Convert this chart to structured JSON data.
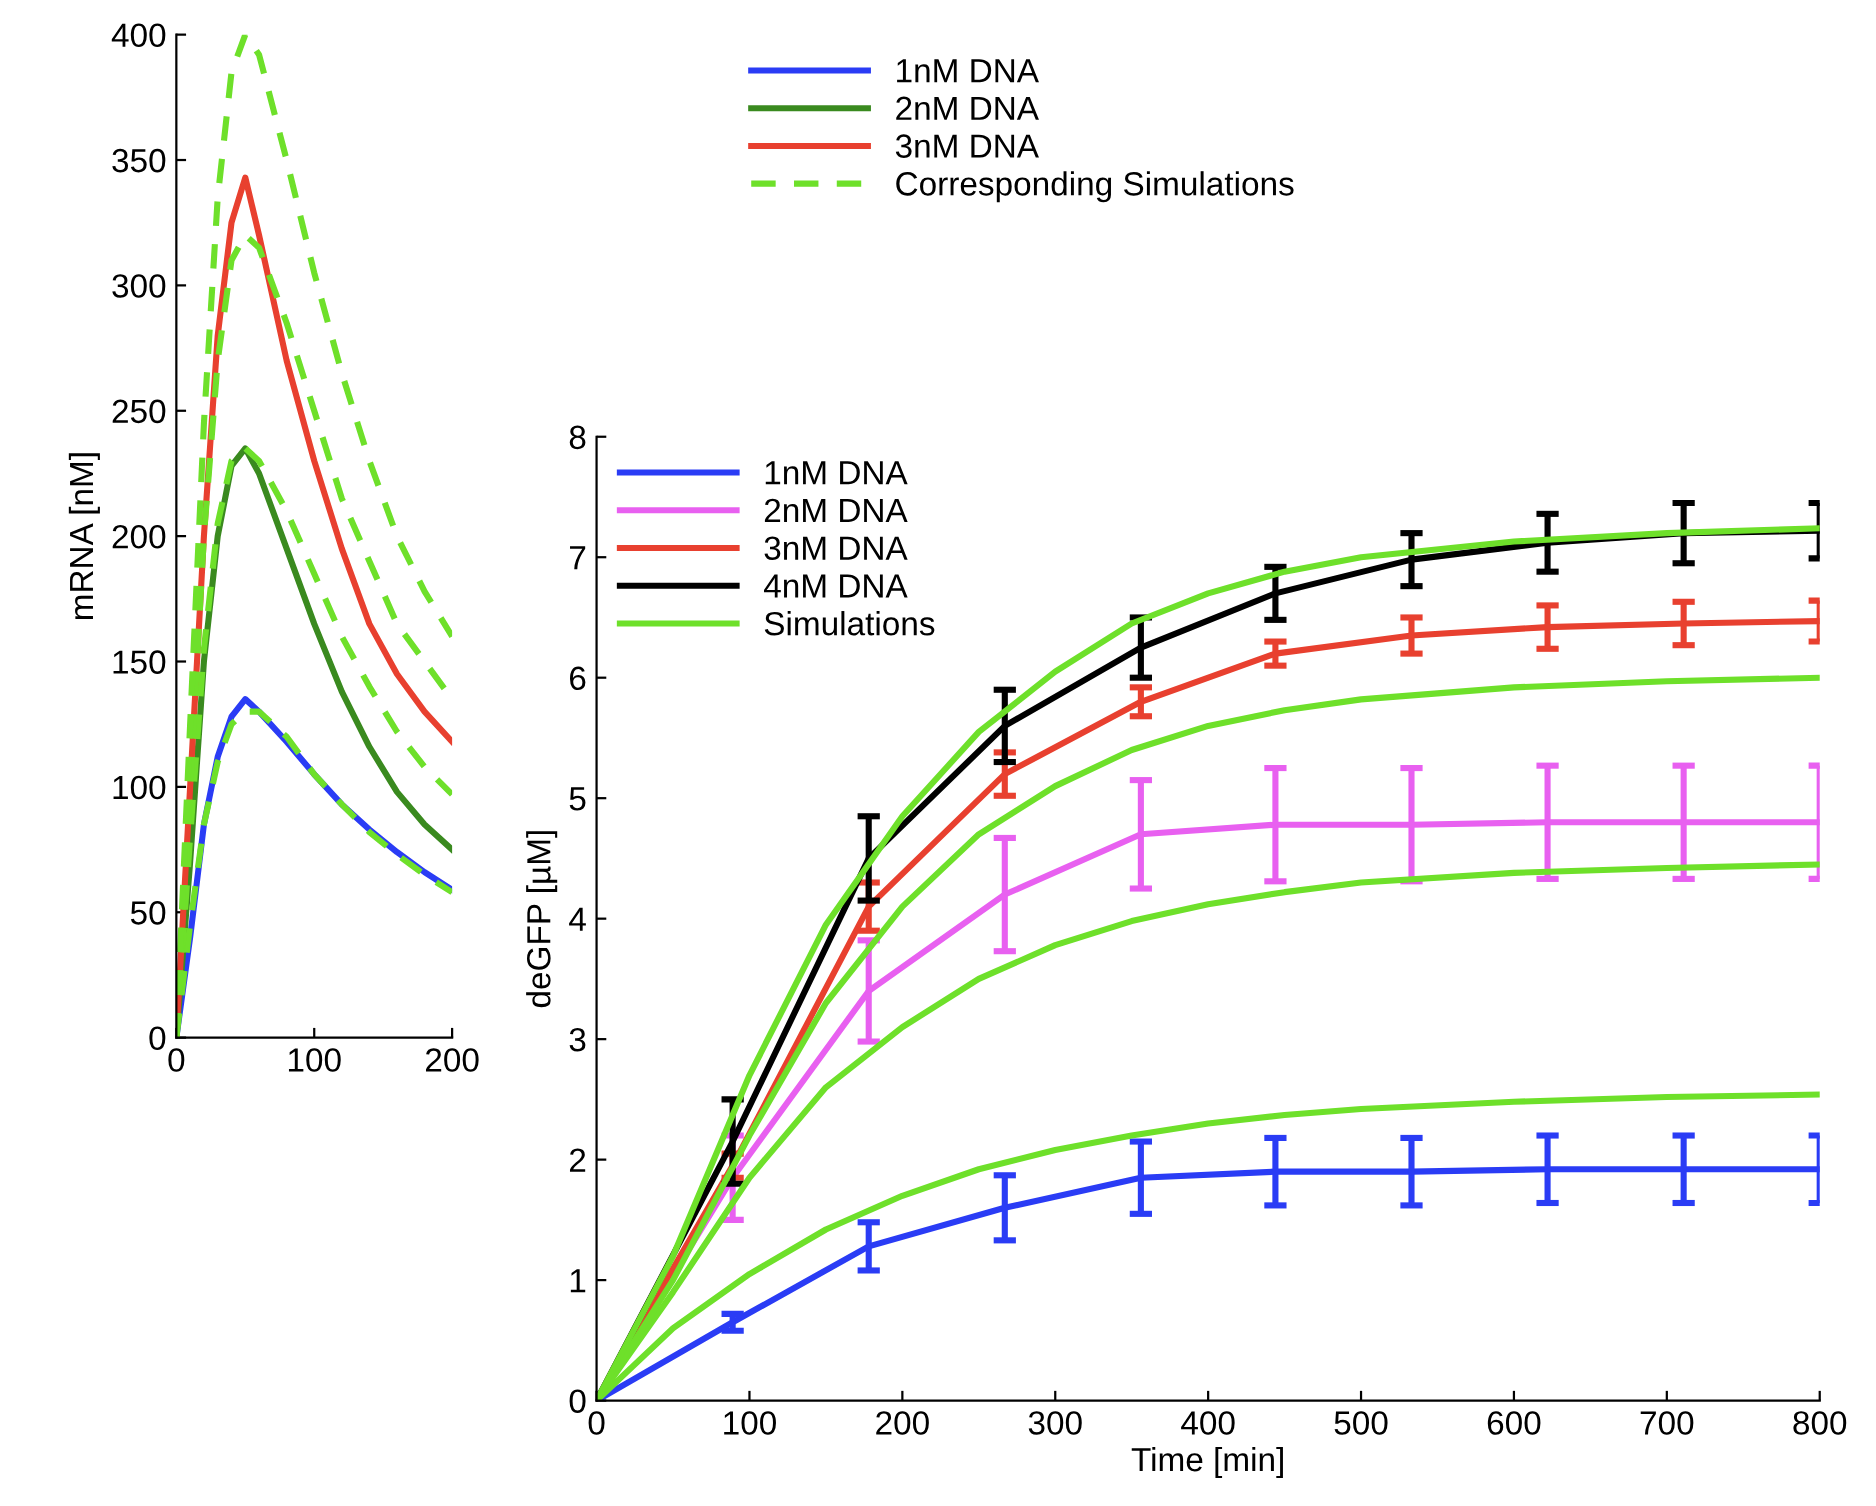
{
  "chart_data": [
    {
      "type": "line",
      "ylabel": "mRNA [nM]",
      "xlim": [
        0,
        200
      ],
      "ylim": [
        0,
        400
      ],
      "xticks": [
        0,
        100,
        200
      ],
      "yticks": [
        0,
        50,
        100,
        150,
        200,
        250,
        300,
        350,
        400
      ],
      "legend": "right",
      "grid": false,
      "line_style": "solid",
      "series": [
        {
          "name": "1nM DNA",
          "color": "#2a3cf5",
          "x": [
            0,
            10,
            20,
            30,
            40,
            50,
            60,
            80,
            100,
            120,
            140,
            160,
            180,
            200
          ],
          "values": [
            0,
            40,
            85,
            112,
            128,
            135,
            130,
            118,
            105,
            93,
            83,
            74,
            66,
            59
          ]
        },
        {
          "name": "2nM DNA",
          "color": "#3a8a1f",
          "x": [
            0,
            10,
            20,
            30,
            40,
            50,
            60,
            80,
            100,
            120,
            140,
            160,
            180,
            200
          ],
          "values": [
            0,
            70,
            150,
            200,
            228,
            235,
            225,
            195,
            165,
            138,
            116,
            98,
            85,
            75
          ]
        },
        {
          "name": "3nM DNA",
          "color": "#e8402f",
          "x": [
            0,
            10,
            20,
            30,
            40,
            50,
            60,
            80,
            100,
            120,
            140,
            160,
            180,
            200
          ],
          "values": [
            0,
            100,
            200,
            280,
            325,
            343,
            320,
            270,
            230,
            195,
            165,
            145,
            130,
            118
          ]
        },
        {
          "name": "Corresponding Simulations",
          "color": "#6ee02a",
          "line_style": "dashed",
          "x": [
            0,
            10,
            20,
            30,
            40,
            50,
            60,
            80,
            100,
            120,
            140,
            160,
            180,
            200
          ],
          "values": [
            0,
            45,
            85,
            110,
            125,
            130,
            130,
            120,
            105,
            93,
            82,
            73,
            65,
            58
          ]
        },
        {
          "color": "#6ee02a",
          "line_style": "dashed",
          "x": [
            0,
            10,
            20,
            30,
            40,
            50,
            60,
            80,
            100,
            120,
            140,
            160,
            180,
            200
          ],
          "values": [
            0,
            80,
            155,
            205,
            230,
            235,
            230,
            210,
            185,
            160,
            140,
            122,
            108,
            97
          ]
        },
        {
          "color": "#6ee02a",
          "line_style": "dashed",
          "x": [
            0,
            10,
            20,
            30,
            40,
            50,
            60,
            80,
            100,
            120,
            140,
            160,
            180,
            200
          ],
          "values": [
            0,
            100,
            200,
            270,
            310,
            320,
            315,
            285,
            250,
            215,
            190,
            165,
            150,
            135
          ]
        },
        {
          "color": "#6ee02a",
          "line_style": "dashed",
          "x": [
            0,
            10,
            20,
            30,
            40,
            50,
            60,
            80,
            100,
            120,
            140,
            160,
            180,
            200
          ],
          "values": [
            0,
            125,
            245,
            335,
            385,
            400,
            392,
            350,
            305,
            265,
            230,
            200,
            178,
            160
          ]
        }
      ]
    },
    {
      "type": "line",
      "xlabel": "Time [min]",
      "ylabel": "deGFP [µM]",
      "xlim": [
        0,
        800
      ],
      "ylim": [
        0,
        8
      ],
      "xticks": [
        0,
        100,
        200,
        300,
        400,
        500,
        600,
        700,
        800
      ],
      "yticks": [
        0,
        1,
        2,
        3,
        4,
        5,
        6,
        7,
        8
      ],
      "legend": "top left",
      "grid": false,
      "line_style": "solid",
      "series": [
        {
          "name": "1nM DNA",
          "color": "#2a3cf5",
          "x": [
            0,
            89,
            178,
            267,
            356,
            444,
            533,
            622,
            711,
            800
          ],
          "values": [
            0,
            0.65,
            1.28,
            1.6,
            1.85,
            1.9,
            1.9,
            1.92,
            1.92,
            1.92
          ],
          "errors": [
            null,
            0.07,
            0.2,
            0.27,
            0.3,
            0.28,
            0.28,
            0.28,
            0.28,
            0.28
          ]
        },
        {
          "name": "2nM DNA",
          "color": "#e860f0",
          "x": [
            0,
            89,
            178,
            267,
            356,
            444,
            533,
            622,
            711,
            800
          ],
          "values": [
            0,
            1.85,
            3.4,
            4.2,
            4.7,
            4.78,
            4.78,
            4.8,
            4.8,
            4.8
          ],
          "errors": [
            null,
            0.35,
            0.42,
            0.47,
            0.45,
            0.47,
            0.47,
            0.47,
            0.47,
            0.47
          ]
        },
        {
          "name": "3nM DNA",
          "color": "#e8402f",
          "x": [
            0,
            89,
            178,
            267,
            356,
            444,
            533,
            622,
            711,
            800
          ],
          "values": [
            0,
            1.95,
            4.1,
            5.2,
            5.8,
            6.2,
            6.35,
            6.42,
            6.45,
            6.47
          ],
          "errors": [
            null,
            0.1,
            0.2,
            0.18,
            0.12,
            0.1,
            0.15,
            0.18,
            0.18,
            0.17
          ]
        },
        {
          "name": "4nM DNA",
          "color": "#000000",
          "x": [
            0,
            89,
            178,
            267,
            356,
            444,
            533,
            622,
            711,
            800
          ],
          "values": [
            0,
            2.15,
            4.5,
            5.6,
            6.25,
            6.7,
            6.98,
            7.12,
            7.2,
            7.22
          ],
          "errors": [
            null,
            0.35,
            0.35,
            0.3,
            0.25,
            0.22,
            0.22,
            0.24,
            0.25,
            0.23
          ]
        },
        {
          "name": "Simulations",
          "color": "#6ee02a",
          "x": [
            0,
            50,
            100,
            150,
            200,
            250,
            300,
            350,
            400,
            450,
            500,
            600,
            700,
            800
          ],
          "values": [
            0,
            0.6,
            1.05,
            1.42,
            1.7,
            1.92,
            2.08,
            2.2,
            2.3,
            2.37,
            2.42,
            2.48,
            2.52,
            2.54
          ]
        },
        {
          "color": "#6ee02a",
          "x": [
            0,
            50,
            100,
            150,
            200,
            250,
            300,
            350,
            400,
            450,
            500,
            600,
            700,
            800
          ],
          "values": [
            0,
            0.9,
            1.85,
            2.6,
            3.1,
            3.5,
            3.78,
            3.98,
            4.12,
            4.22,
            4.3,
            4.38,
            4.42,
            4.45
          ]
        },
        {
          "color": "#6ee02a",
          "x": [
            0,
            50,
            100,
            150,
            200,
            250,
            300,
            350,
            400,
            450,
            500,
            600,
            700,
            800
          ],
          "values": [
            0,
            1.0,
            2.2,
            3.3,
            4.1,
            4.7,
            5.1,
            5.4,
            5.6,
            5.73,
            5.82,
            5.92,
            5.97,
            6.0
          ]
        },
        {
          "color": "#6ee02a",
          "x": [
            0,
            50,
            100,
            150,
            200,
            250,
            300,
            350,
            400,
            450,
            500,
            600,
            700,
            800
          ],
          "values": [
            0,
            1.2,
            2.7,
            3.95,
            4.85,
            5.55,
            6.05,
            6.45,
            6.7,
            6.88,
            7.0,
            7.13,
            7.2,
            7.24
          ]
        }
      ]
    }
  ]
}
